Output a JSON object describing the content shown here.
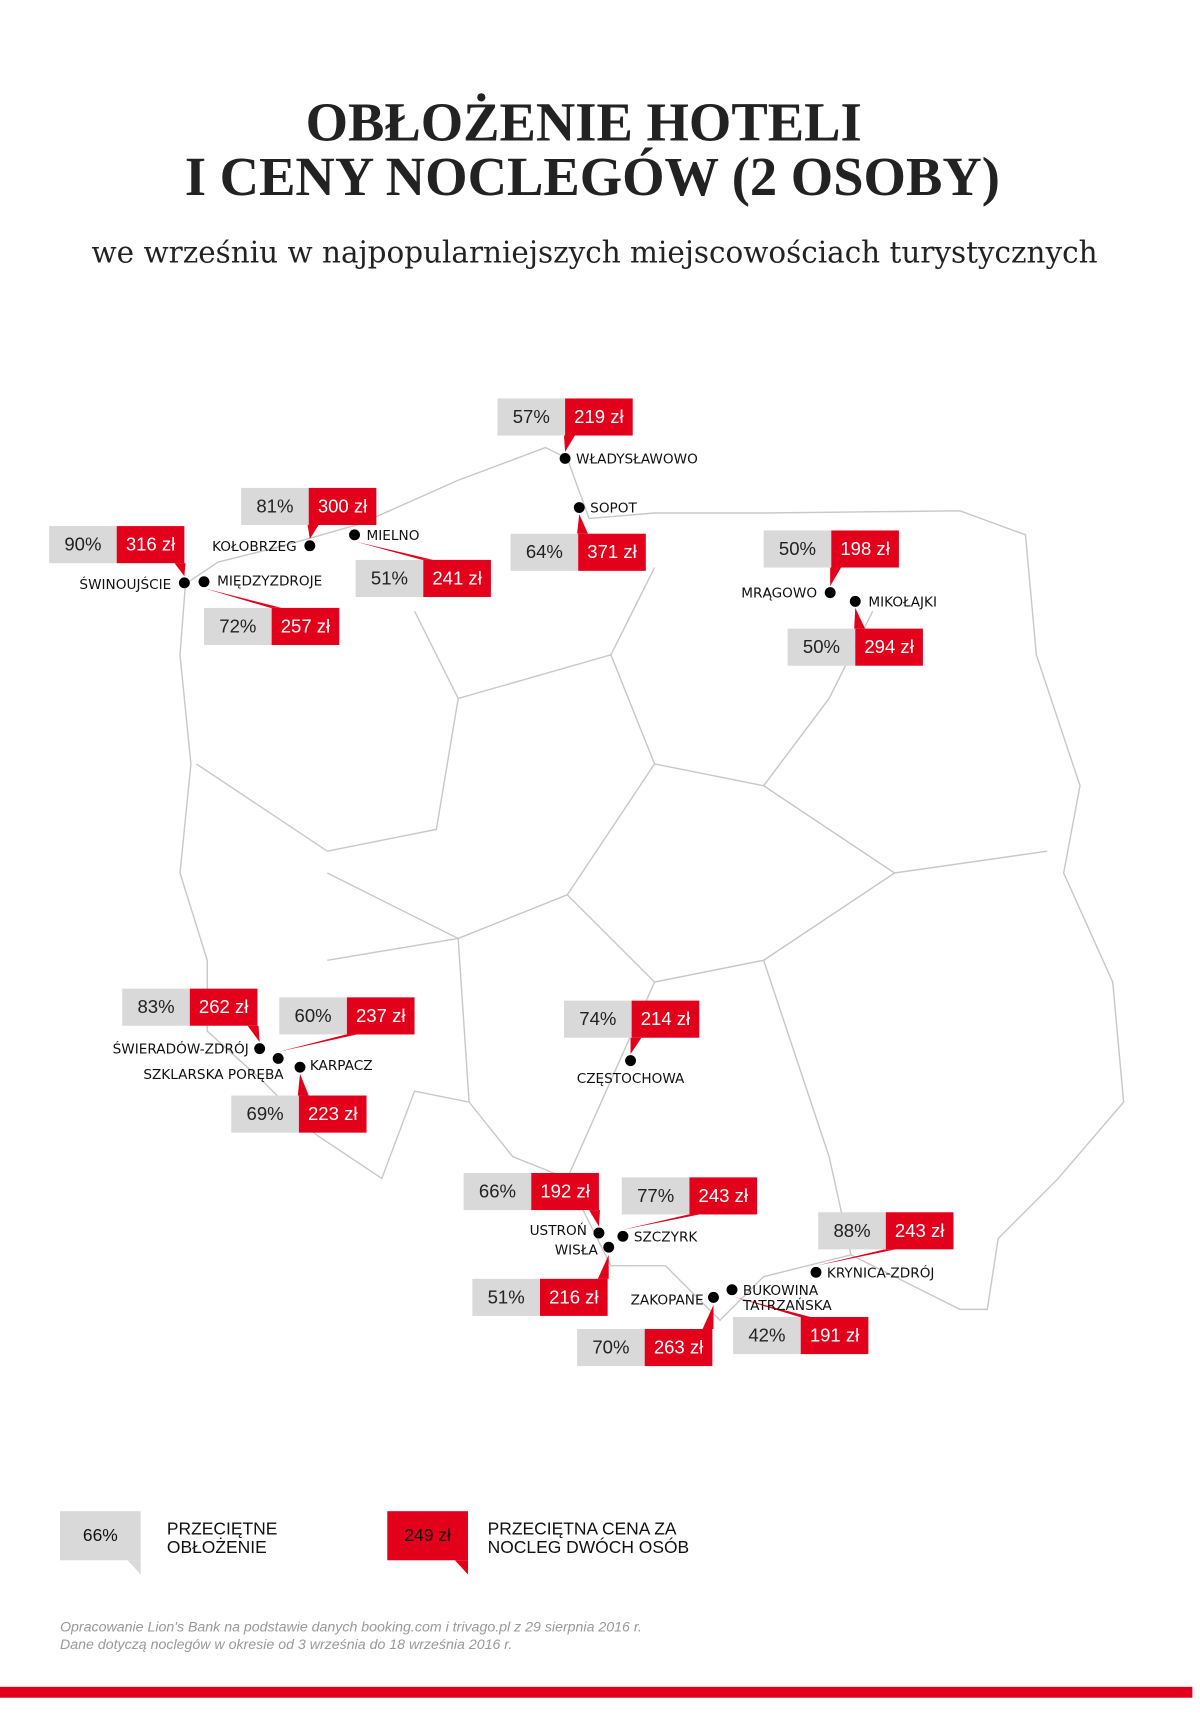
{
  "header": {
    "title_lines": [
      "OBŁOŻENIE HOTELI",
      "I CENY NOCLEGÓW (2 OSOBY)"
    ],
    "subtitle": "we wrześniu w najpopularniejszych miejscowościach turystycznych"
  },
  "locations": [
    {
      "name": "WŁADYSŁAWOWO",
      "occupancy": "57%",
      "price": "219 zł"
    },
    {
      "name": "SOPOT",
      "occupancy": "64%",
      "price": "371 zł"
    },
    {
      "name": "KOŁOBRZEG",
      "occupancy": "81%",
      "price": "300 zł"
    },
    {
      "name": "MIELNO",
      "occupancy": "51%",
      "price": "241 zł"
    },
    {
      "name": "ŚWINOUJŚCIE",
      "occupancy": "90%",
      "price": "316 zł"
    },
    {
      "name": "MIĘDZYZDROJE",
      "occupancy": "72%",
      "price": "257 zł"
    },
    {
      "name": "MRĄGOWO",
      "occupancy": "50%",
      "price": "198 zł"
    },
    {
      "name": "MIKOŁAJKI",
      "occupancy": "50%",
      "price": "294 zł"
    },
    {
      "name": "ŚWIERADÓW-ZDRÓJ",
      "occupancy": "83%",
      "price": "262 zł"
    },
    {
      "name": "SZKLARSKA PORĘBA",
      "occupancy": "60%",
      "price": "237 zł"
    },
    {
      "name": "KARPACZ",
      "occupancy": "69%",
      "price": "223 zł"
    },
    {
      "name": "CZĘSTOCHOWA",
      "occupancy": "74%",
      "price": "214 zł"
    },
    {
      "name": "USTROŃ",
      "occupancy": "66%",
      "price": "192 zł"
    },
    {
      "name": "WISŁA",
      "occupancy": "51%",
      "price": "216 zł"
    },
    {
      "name": "SZCZYRK",
      "occupancy": "77%",
      "price": "243 zł"
    },
    {
      "name": "ZAKOPANE",
      "occupancy": "70%",
      "price": "263 zł"
    },
    {
      "name": "BUKOWINA TATRZAŃSKA",
      "occupancy": "42%",
      "price": "191 zł"
    },
    {
      "name": "KRYNICA-ZDRÓJ",
      "occupancy": "88%",
      "price": "243 zł"
    }
  ],
  "legend": [
    {
      "sample": "66%",
      "label_lines": [
        "PRZECIĘTNE",
        "OBŁOŻENIE"
      ]
    },
    {
      "sample": "249 zł",
      "label_lines": [
        "PRZECIĘTNA CENA ZA",
        "NOCLEG DWÓCH OSÓB"
      ]
    }
  ],
  "footer": {
    "lines": [
      "Opracowanie Lion's Bank na podstawie danych booking.com i trivago.pl z 29 sierpnia 2016 r.",
      "Dane dotyczą noclegów w okresie od 3 września do 18 września 2016 r."
    ]
  }
}
